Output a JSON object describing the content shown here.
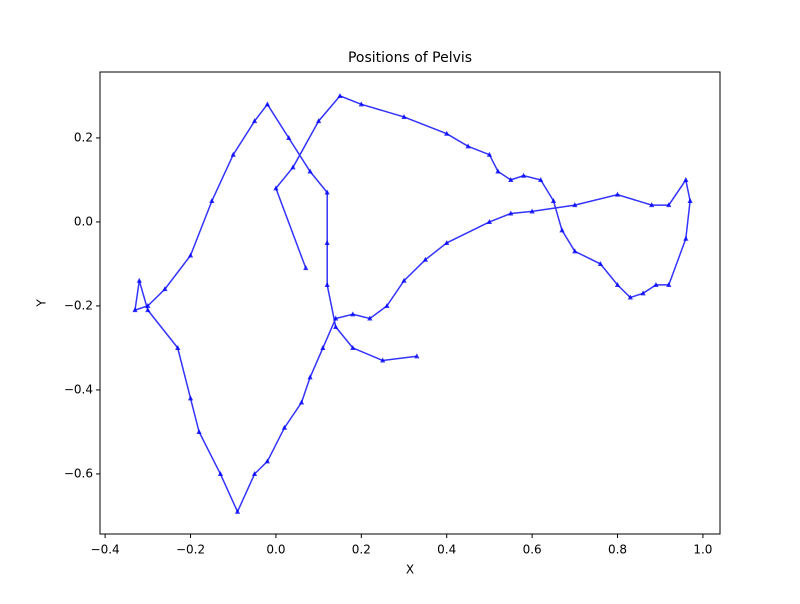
{
  "chart_data": {
    "type": "line",
    "title": "Positions of Pelvis",
    "xlabel": "X",
    "ylabel": "Y",
    "color": "#0000ff",
    "x": [
      0.07,
      0.0,
      0.04,
      0.1,
      0.15,
      0.2,
      0.3,
      0.4,
      0.45,
      0.5,
      0.52,
      0.55,
      0.58,
      0.62,
      0.65,
      0.67,
      0.7,
      0.76,
      0.8,
      0.83,
      0.86,
      0.89,
      0.92,
      0.96,
      0.97,
      0.96,
      0.92,
      0.88,
      0.8,
      0.7,
      0.6,
      0.55,
      0.5,
      0.4,
      0.35,
      0.3,
      0.26,
      0.22,
      0.18,
      0.14,
      0.11,
      0.08,
      0.06,
      0.02,
      -0.02,
      -0.05,
      -0.09,
      -0.13,
      -0.18,
      -0.2,
      -0.23,
      -0.3,
      -0.32,
      -0.33,
      -0.3,
      -0.26,
      -0.2,
      -0.15,
      -0.1,
      -0.05,
      -0.02,
      0.03,
      0.08,
      0.12,
      0.12,
      0.12,
      0.14,
      0.18,
      0.25,
      0.33
    ],
    "values": [
      -0.11,
      0.08,
      0.13,
      0.24,
      0.3,
      0.28,
      0.25,
      0.21,
      0.18,
      0.16,
      0.12,
      0.1,
      0.11,
      0.1,
      0.05,
      -0.02,
      -0.07,
      -0.1,
      -0.15,
      -0.18,
      -0.17,
      -0.15,
      -0.15,
      -0.04,
      0.05,
      0.1,
      0.04,
      0.04,
      0.065,
      0.04,
      0.025,
      0.02,
      0.0,
      -0.05,
      -0.09,
      -0.14,
      -0.2,
      -0.23,
      -0.22,
      -0.23,
      -0.3,
      -0.37,
      -0.43,
      -0.49,
      -0.57,
      -0.6,
      -0.69,
      -0.6,
      -0.5,
      -0.42,
      -0.3,
      -0.21,
      -0.14,
      -0.21,
      -0.2,
      -0.16,
      -0.08,
      0.05,
      0.16,
      0.24,
      0.28,
      0.2,
      0.12,
      0.07,
      -0.05,
      -0.15,
      -0.25,
      -0.3,
      -0.33,
      -0.32
    ],
    "xlim": [
      -0.412,
      1.04
    ],
    "ylim": [
      -0.743,
      0.357
    ],
    "xticks": [
      {
        "value": -0.4,
        "label": "−0.4"
      },
      {
        "value": -0.2,
        "label": "−0.2"
      },
      {
        "value": 0,
        "label": "0.0"
      },
      0.2,
      0.4,
      0.6,
      0.8,
      {
        "value": 1,
        "label": "1.0"
      }
    ],
    "yticks": [
      {
        "value": -0.6,
        "label": "−0.6"
      },
      {
        "value": -0.4,
        "label": "−0.4"
      },
      {
        "value": -0.2,
        "label": "−0.2"
      },
      {
        "value": 0,
        "label": "0.0"
      },
      0.2
    ]
  }
}
